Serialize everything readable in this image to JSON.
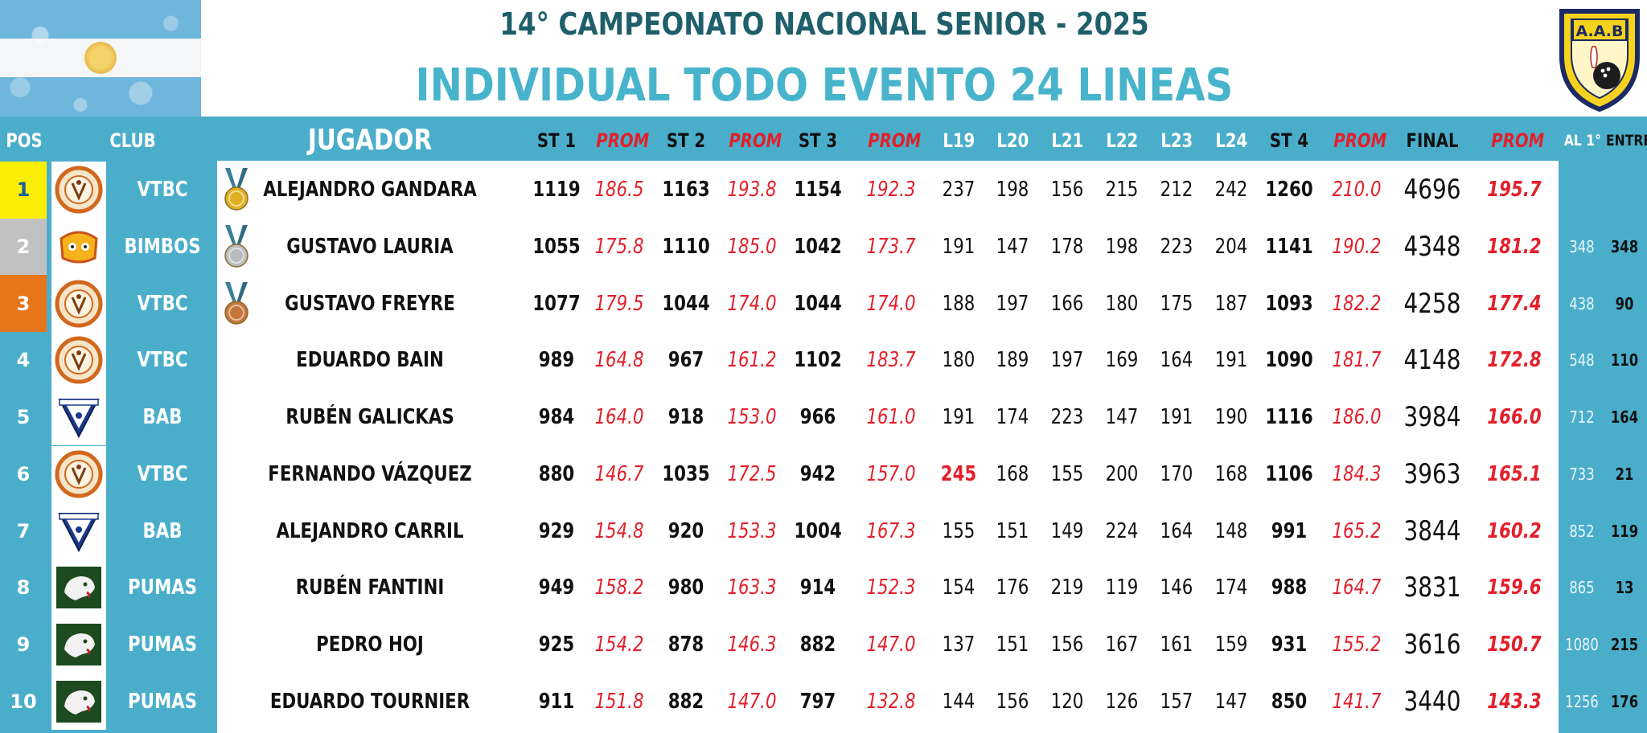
{
  "header": {
    "title_line1": "14° CAMPEONATO NACIONAL SENIOR - 2025",
    "title_line2": "INDIVIDUAL TODO EVENTO 24 LINEAS",
    "logo_text": "A.A.B"
  },
  "columns": {
    "pos": "POS",
    "club": "CLUB",
    "player": "JUGADOR",
    "st1": "ST 1",
    "prom1": "PROM",
    "st2": "ST 2",
    "prom2": "PROM",
    "st3": "ST 3",
    "prom3": "PROM",
    "l19": "L19",
    "l20": "L20",
    "l21": "L21",
    "l22": "L22",
    "l23": "L23",
    "l24": "L24",
    "st4": "ST 4",
    "prom4": "PROM",
    "final": "FINAL",
    "prom_final": "PROM",
    "al1": "AL 1°",
    "entre": "ENTRE"
  },
  "colors": {
    "table_blue": "#4aaecb",
    "title_dark": "#1f5f6b",
    "title_light": "#47b4cc",
    "prom_red": "#e2202b",
    "gold_pos": "#fcee06",
    "silver_pos": "#c1c1c1",
    "bronze_pos": "#e6761a"
  },
  "rows": [
    {
      "pos": "1",
      "club": "VTBC",
      "club_logo": "vtbc-logo",
      "medal": "gold",
      "player": "ALEJANDRO GANDARA",
      "st1": "1119",
      "prom1": "186.5",
      "st2": "1163",
      "prom2": "193.8",
      "st3": "1154",
      "prom3": "192.3",
      "l19": "237",
      "l20": "198",
      "l21": "156",
      "l22": "215",
      "l23": "212",
      "l24": "242",
      "st4": "1260",
      "prom4": "210.0",
      "final": "4696",
      "prom_final": "195.7",
      "al1": "",
      "entre": ""
    },
    {
      "pos": "2",
      "club": "BIMBOS",
      "club_logo": "bimbos-logo",
      "medal": "silver",
      "player": "GUSTAVO LAURIA",
      "st1": "1055",
      "prom1": "175.8",
      "st2": "1110",
      "prom2": "185.0",
      "st3": "1042",
      "prom3": "173.7",
      "l19": "191",
      "l20": "147",
      "l21": "178",
      "l22": "198",
      "l23": "223",
      "l24": "204",
      "st4": "1141",
      "prom4": "190.2",
      "final": "4348",
      "prom_final": "181.2",
      "al1": "348",
      "entre": "348"
    },
    {
      "pos": "3",
      "club": "VTBC",
      "club_logo": "vtbc-logo",
      "medal": "bronze",
      "player": "GUSTAVO FREYRE",
      "st1": "1077",
      "prom1": "179.5",
      "st2": "1044",
      "prom2": "174.0",
      "st3": "1044",
      "prom3": "174.0",
      "l19": "188",
      "l20": "197",
      "l21": "166",
      "l22": "180",
      "l23": "175",
      "l24": "187",
      "st4": "1093",
      "prom4": "182.2",
      "final": "4258",
      "prom_final": "177.4",
      "al1": "438",
      "entre": "90"
    },
    {
      "pos": "4",
      "club": "VTBC",
      "club_logo": "vtbc-logo",
      "medal": "",
      "player": "EDUARDO BAIN",
      "st1": "989",
      "prom1": "164.8",
      "st2": "967",
      "prom2": "161.2",
      "st3": "1102",
      "prom3": "183.7",
      "l19": "180",
      "l20": "189",
      "l21": "197",
      "l22": "169",
      "l23": "164",
      "l24": "191",
      "st4": "1090",
      "prom4": "181.7",
      "final": "4148",
      "prom_final": "172.8",
      "al1": "548",
      "entre": "110"
    },
    {
      "pos": "5",
      "club": "BAB",
      "club_logo": "bab-logo",
      "medal": "",
      "player": "RUBÉN GALICKAS",
      "st1": "984",
      "prom1": "164.0",
      "st2": "918",
      "prom2": "153.0",
      "st3": "966",
      "prom3": "161.0",
      "l19": "191",
      "l20": "174",
      "l21": "223",
      "l22": "147",
      "l23": "191",
      "l24": "190",
      "st4": "1116",
      "prom4": "186.0",
      "final": "3984",
      "prom_final": "166.0",
      "al1": "712",
      "entre": "164"
    },
    {
      "pos": "6",
      "club": "VTBC",
      "club_logo": "vtbc-logo",
      "medal": "",
      "player": "FERNANDO VÁZQUEZ",
      "st1": "880",
      "prom1": "146.7",
      "st2": "1035",
      "prom2": "172.5",
      "st3": "942",
      "prom3": "157.0",
      "l19": "245",
      "l20": "168",
      "l21": "155",
      "l22": "200",
      "l23": "170",
      "l24": "168",
      "st4": "1106",
      "prom4": "184.3",
      "final": "3963",
      "prom_final": "165.1",
      "al1": "733",
      "entre": "21"
    },
    {
      "pos": "7",
      "club": "BAB",
      "club_logo": "bab-logo",
      "medal": "",
      "player": "ALEJANDRO CARRIL",
      "st1": "929",
      "prom1": "154.8",
      "st2": "920",
      "prom2": "153.3",
      "st3": "1004",
      "prom3": "167.3",
      "l19": "155",
      "l20": "151",
      "l21": "149",
      "l22": "224",
      "l23": "164",
      "l24": "148",
      "st4": "991",
      "prom4": "165.2",
      "final": "3844",
      "prom_final": "160.2",
      "al1": "852",
      "entre": "119"
    },
    {
      "pos": "8",
      "club": "PUMAS",
      "club_logo": "pumas-logo",
      "medal": "",
      "player": "RUBÉN FANTINI",
      "st1": "949",
      "prom1": "158.2",
      "st2": "980",
      "prom2": "163.3",
      "st3": "914",
      "prom3": "152.3",
      "l19": "154",
      "l20": "176",
      "l21": "219",
      "l22": "119",
      "l23": "146",
      "l24": "174",
      "st4": "988",
      "prom4": "164.7",
      "final": "3831",
      "prom_final": "159.6",
      "al1": "865",
      "entre": "13"
    },
    {
      "pos": "9",
      "club": "PUMAS",
      "club_logo": "pumas-logo",
      "medal": "",
      "player": "PEDRO HOJ",
      "st1": "925",
      "prom1": "154.2",
      "st2": "878",
      "prom2": "146.3",
      "st3": "882",
      "prom3": "147.0",
      "l19": "137",
      "l20": "151",
      "l21": "156",
      "l22": "167",
      "l23": "161",
      "l24": "159",
      "st4": "931",
      "prom4": "155.2",
      "final": "3616",
      "prom_final": "150.7",
      "al1": "1080",
      "entre": "215"
    },
    {
      "pos": "10",
      "club": "PUMAS",
      "club_logo": "pumas-logo",
      "medal": "",
      "player": "EDUARDO TOURNIER",
      "st1": "911",
      "prom1": "151.8",
      "st2": "882",
      "prom2": "147.0",
      "st3": "797",
      "prom3": "132.8",
      "l19": "144",
      "l20": "156",
      "l21": "120",
      "l22": "126",
      "l23": "157",
      "l24": "147",
      "st4": "850",
      "prom4": "141.7",
      "final": "3440",
      "prom_final": "143.3",
      "al1": "1256",
      "entre": "176"
    }
  ]
}
